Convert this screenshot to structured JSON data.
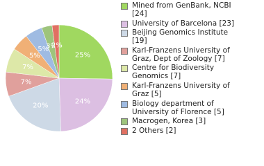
{
  "chart_data": {
    "type": "pie",
    "categories": [
      "Mined from GenBank, NCBI [24]",
      "University of Barcelona [23]",
      "Beijing Genomics Institute [19]",
      "Karl-Franzens University of Graz, Dept of Zoology [7]",
      "Centre for Biodiversity Genomics [7]",
      "Karl-Franzens University of Graz [5]",
      "Biology department of University of Florence [5]",
      "Macrogen, Korea [3]",
      "2 Others [2]"
    ],
    "values": [
      24,
      23,
      19,
      7,
      7,
      5,
      5,
      3,
      2
    ],
    "value_labels": [
      "25%",
      "24%",
      "20%",
      "7%",
      "7%",
      "5%",
      "5%",
      "3%",
      "2%"
    ],
    "colors": [
      "#a0d860",
      "#dcbfe2",
      "#cdd9e6",
      "#e0a09c",
      "#dde8a8",
      "#f0b076",
      "#9fbbe2",
      "#9ec47c",
      "#e07062"
    ]
  }
}
